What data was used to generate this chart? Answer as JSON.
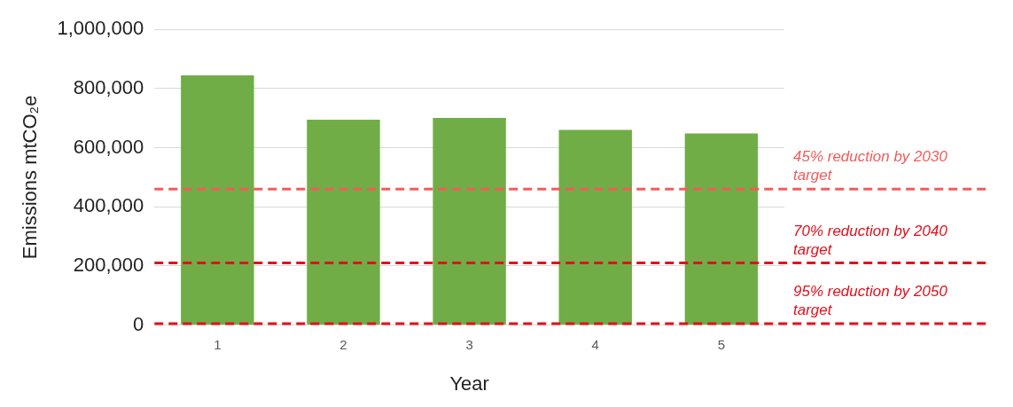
{
  "chart_data": {
    "type": "bar",
    "xlabel": "Year",
    "ylabel": "Emissions mtCO₂e",
    "categories": [
      "1",
      "2",
      "3",
      "4",
      "5"
    ],
    "values": [
      845000,
      695000,
      701000,
      660000,
      648000
    ],
    "color": "#70ad47",
    "ylim": [
      0,
      1000000
    ],
    "yticks": [
      0,
      {
        "value": 200000,
        "label": "200,000"
      },
      {
        "value": 400000,
        "label": "400,000"
      },
      {
        "value": 600000,
        "label": "600,000"
      },
      {
        "value": 800000,
        "label": "800,000"
      },
      {
        "value": 1000000,
        "label": "1,000,000"
      }
    ],
    "grid": "y",
    "ref_lines": [
      {
        "axis": "y",
        "value": 460000,
        "label": "45% reduction by 2030 target",
        "color": "#f25c5c",
        "line_style": "dashed"
      },
      {
        "axis": "y",
        "value": 210000,
        "label": "70% reduction by 2040 target",
        "color": "#e3101c",
        "line_style": "dashed"
      },
      {
        "axis": "y",
        "value": 5000,
        "label": "95% reduction by 2050 target",
        "color": "#e3101c",
        "line_style": "dashed"
      }
    ]
  }
}
